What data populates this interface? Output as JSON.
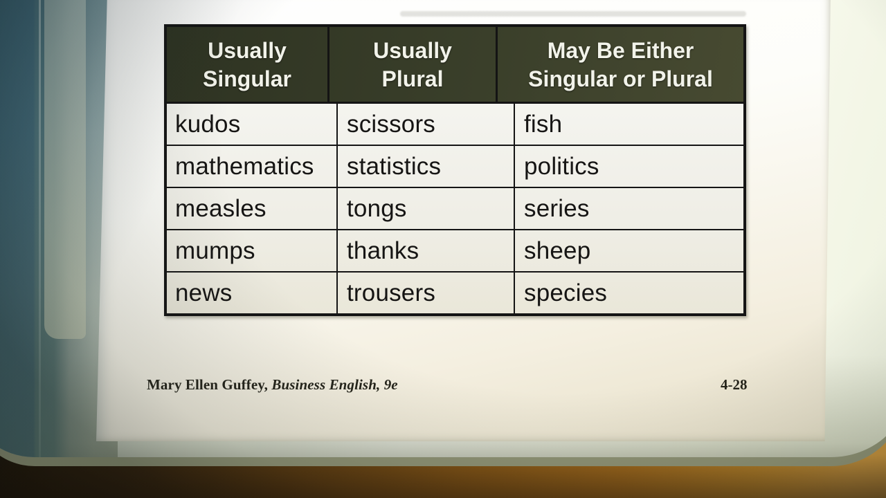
{
  "page": {
    "table": {
      "headers": [
        {
          "line1": "Usually",
          "line2": "Singular"
        },
        {
          "line1": "Usually",
          "line2": "Plural"
        },
        {
          "line1": "May Be Either",
          "line2": "Singular or Plural"
        }
      ],
      "rows": [
        [
          "kudos",
          "scissors",
          "fish"
        ],
        [
          "mathematics",
          "statistics",
          "politics"
        ],
        [
          "measles",
          "tongs",
          "series"
        ],
        [
          "mumps",
          "thanks",
          "sheep"
        ],
        [
          "news",
          "trousers",
          "species"
        ]
      ]
    },
    "footer": {
      "credit_author": "Mary Ellen Guffey, ",
      "credit_title": "Business English, ",
      "credit_edition": "9e",
      "slide_number": "4-28"
    }
  },
  "colors": {
    "header_bg": "#3a3f2a",
    "header_bg_dark": "#2e3322",
    "header_bg_light": "#474a31",
    "header_text": "#f2f3ea",
    "cell_bg": "#f1f1ea",
    "border": "#141414",
    "cell_text": "#161514",
    "wood_mid": "#8a5815",
    "teal": "#47707f"
  }
}
